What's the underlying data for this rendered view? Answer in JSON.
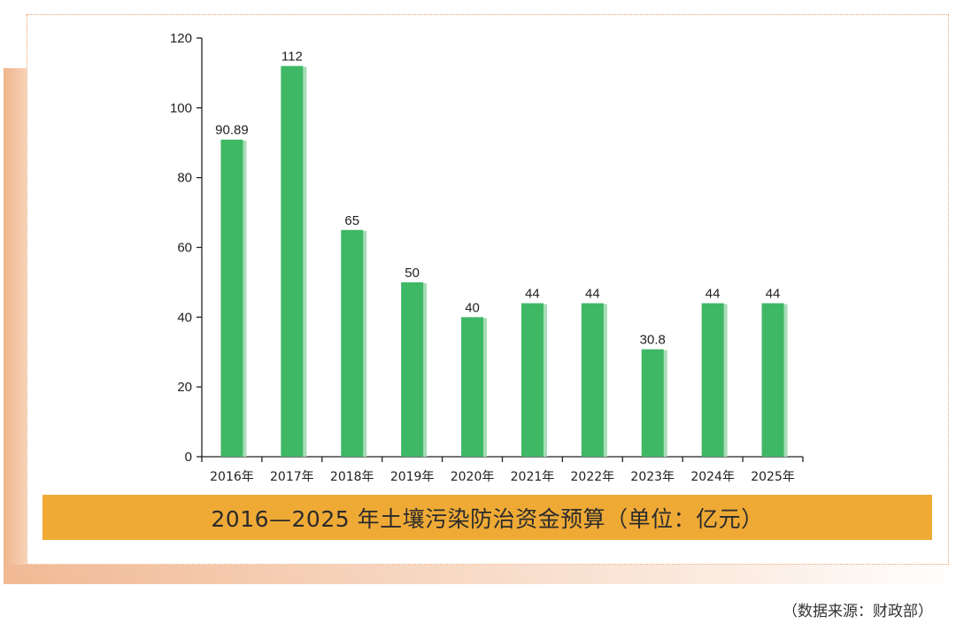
{
  "chart_data": {
    "type": "bar",
    "title": "2016—2025 年土壤污染防治资金预算（单位：亿元）",
    "categories": [
      "2016年",
      "2017年",
      "2018年",
      "2019年",
      "2020年",
      "2021年",
      "2022年",
      "2023年",
      "2024年",
      "2025年"
    ],
    "values": [
      90.89,
      112,
      65,
      50,
      40,
      44,
      44,
      30.8,
      44,
      44
    ],
    "value_labels": [
      "90.89",
      "112",
      "65",
      "50",
      "40",
      "44",
      "44",
      "30.8",
      "44",
      "44"
    ],
    "yticks": [
      "0",
      "20",
      "40",
      "60",
      "80",
      "100",
      "120"
    ],
    "ylim": [
      0,
      120
    ],
    "xlabel": "",
    "ylabel": "",
    "grid": false,
    "bar_color": "#3fb866",
    "bar_shadow_color": "#a8dcb6"
  },
  "source": "（数据来源：财政部）",
  "colors": {
    "banner": "#efaa36",
    "frame": "#f0b48c",
    "panel_border": "#e9a06a"
  }
}
